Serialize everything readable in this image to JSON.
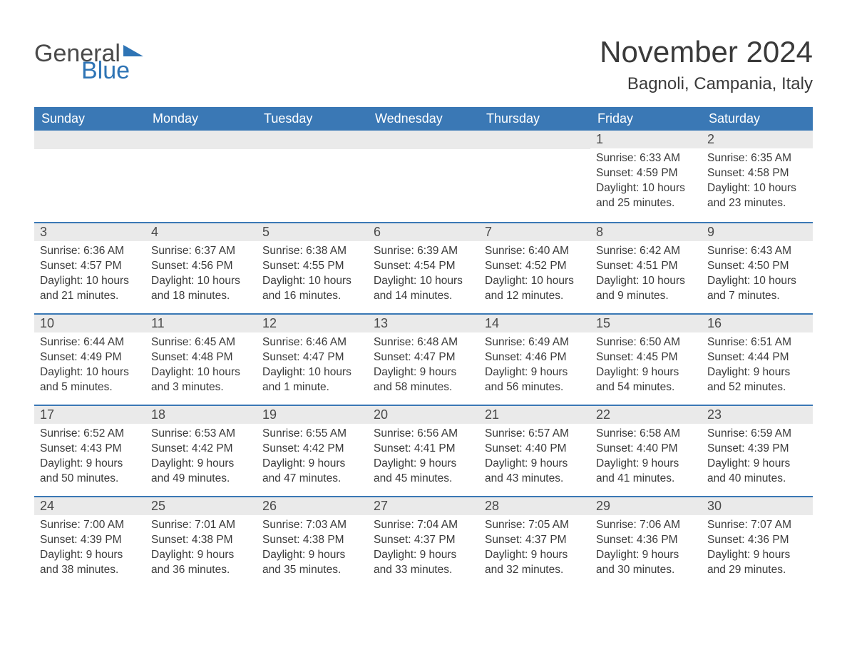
{
  "colors": {
    "header_bg": "#3a78b5",
    "header_text": "#ffffff",
    "daybar_bg": "#eaeaea",
    "daybar_border": "#3a78b5",
    "body_text": "#3a3a3a",
    "logo_gray": "#4a4a4a",
    "logo_blue": "#2e74b5",
    "page_bg": "#ffffff"
  },
  "fonts": {
    "family": "Segoe UI, Arial, sans-serif",
    "month_title_size": 42,
    "location_size": 24,
    "weekday_size": 18,
    "daynum_size": 18,
    "body_size": 15.5
  },
  "logo": {
    "general": "General",
    "blue": "Blue"
  },
  "title": "November 2024",
  "location": "Bagnoli, Campania, Italy",
  "weekdays": [
    "Sunday",
    "Monday",
    "Tuesday",
    "Wednesday",
    "Thursday",
    "Friday",
    "Saturday"
  ],
  "weeks": [
    [
      null,
      null,
      null,
      null,
      null,
      {
        "n": "1",
        "sunrise": "Sunrise: 6:33 AM",
        "sunset": "Sunset: 4:59 PM",
        "day1": "Daylight: 10 hours",
        "day2": "and 25 minutes."
      },
      {
        "n": "2",
        "sunrise": "Sunrise: 6:35 AM",
        "sunset": "Sunset: 4:58 PM",
        "day1": "Daylight: 10 hours",
        "day2": "and 23 minutes."
      }
    ],
    [
      {
        "n": "3",
        "sunrise": "Sunrise: 6:36 AM",
        "sunset": "Sunset: 4:57 PM",
        "day1": "Daylight: 10 hours",
        "day2": "and 21 minutes."
      },
      {
        "n": "4",
        "sunrise": "Sunrise: 6:37 AM",
        "sunset": "Sunset: 4:56 PM",
        "day1": "Daylight: 10 hours",
        "day2": "and 18 minutes."
      },
      {
        "n": "5",
        "sunrise": "Sunrise: 6:38 AM",
        "sunset": "Sunset: 4:55 PM",
        "day1": "Daylight: 10 hours",
        "day2": "and 16 minutes."
      },
      {
        "n": "6",
        "sunrise": "Sunrise: 6:39 AM",
        "sunset": "Sunset: 4:54 PM",
        "day1": "Daylight: 10 hours",
        "day2": "and 14 minutes."
      },
      {
        "n": "7",
        "sunrise": "Sunrise: 6:40 AM",
        "sunset": "Sunset: 4:52 PM",
        "day1": "Daylight: 10 hours",
        "day2": "and 12 minutes."
      },
      {
        "n": "8",
        "sunrise": "Sunrise: 6:42 AM",
        "sunset": "Sunset: 4:51 PM",
        "day1": "Daylight: 10 hours",
        "day2": "and 9 minutes."
      },
      {
        "n": "9",
        "sunrise": "Sunrise: 6:43 AM",
        "sunset": "Sunset: 4:50 PM",
        "day1": "Daylight: 10 hours",
        "day2": "and 7 minutes."
      }
    ],
    [
      {
        "n": "10",
        "sunrise": "Sunrise: 6:44 AM",
        "sunset": "Sunset: 4:49 PM",
        "day1": "Daylight: 10 hours",
        "day2": "and 5 minutes."
      },
      {
        "n": "11",
        "sunrise": "Sunrise: 6:45 AM",
        "sunset": "Sunset: 4:48 PM",
        "day1": "Daylight: 10 hours",
        "day2": "and 3 minutes."
      },
      {
        "n": "12",
        "sunrise": "Sunrise: 6:46 AM",
        "sunset": "Sunset: 4:47 PM",
        "day1": "Daylight: 10 hours",
        "day2": "and 1 minute."
      },
      {
        "n": "13",
        "sunrise": "Sunrise: 6:48 AM",
        "sunset": "Sunset: 4:47 PM",
        "day1": "Daylight: 9 hours",
        "day2": "and 58 minutes."
      },
      {
        "n": "14",
        "sunrise": "Sunrise: 6:49 AM",
        "sunset": "Sunset: 4:46 PM",
        "day1": "Daylight: 9 hours",
        "day2": "and 56 minutes."
      },
      {
        "n": "15",
        "sunrise": "Sunrise: 6:50 AM",
        "sunset": "Sunset: 4:45 PM",
        "day1": "Daylight: 9 hours",
        "day2": "and 54 minutes."
      },
      {
        "n": "16",
        "sunrise": "Sunrise: 6:51 AM",
        "sunset": "Sunset: 4:44 PM",
        "day1": "Daylight: 9 hours",
        "day2": "and 52 minutes."
      }
    ],
    [
      {
        "n": "17",
        "sunrise": "Sunrise: 6:52 AM",
        "sunset": "Sunset: 4:43 PM",
        "day1": "Daylight: 9 hours",
        "day2": "and 50 minutes."
      },
      {
        "n": "18",
        "sunrise": "Sunrise: 6:53 AM",
        "sunset": "Sunset: 4:42 PM",
        "day1": "Daylight: 9 hours",
        "day2": "and 49 minutes."
      },
      {
        "n": "19",
        "sunrise": "Sunrise: 6:55 AM",
        "sunset": "Sunset: 4:42 PM",
        "day1": "Daylight: 9 hours",
        "day2": "and 47 minutes."
      },
      {
        "n": "20",
        "sunrise": "Sunrise: 6:56 AM",
        "sunset": "Sunset: 4:41 PM",
        "day1": "Daylight: 9 hours",
        "day2": "and 45 minutes."
      },
      {
        "n": "21",
        "sunrise": "Sunrise: 6:57 AM",
        "sunset": "Sunset: 4:40 PM",
        "day1": "Daylight: 9 hours",
        "day2": "and 43 minutes."
      },
      {
        "n": "22",
        "sunrise": "Sunrise: 6:58 AM",
        "sunset": "Sunset: 4:40 PM",
        "day1": "Daylight: 9 hours",
        "day2": "and 41 minutes."
      },
      {
        "n": "23",
        "sunrise": "Sunrise: 6:59 AM",
        "sunset": "Sunset: 4:39 PM",
        "day1": "Daylight: 9 hours",
        "day2": "and 40 minutes."
      }
    ],
    [
      {
        "n": "24",
        "sunrise": "Sunrise: 7:00 AM",
        "sunset": "Sunset: 4:39 PM",
        "day1": "Daylight: 9 hours",
        "day2": "and 38 minutes."
      },
      {
        "n": "25",
        "sunrise": "Sunrise: 7:01 AM",
        "sunset": "Sunset: 4:38 PM",
        "day1": "Daylight: 9 hours",
        "day2": "and 36 minutes."
      },
      {
        "n": "26",
        "sunrise": "Sunrise: 7:03 AM",
        "sunset": "Sunset: 4:38 PM",
        "day1": "Daylight: 9 hours",
        "day2": "and 35 minutes."
      },
      {
        "n": "27",
        "sunrise": "Sunrise: 7:04 AM",
        "sunset": "Sunset: 4:37 PM",
        "day1": "Daylight: 9 hours",
        "day2": "and 33 minutes."
      },
      {
        "n": "28",
        "sunrise": "Sunrise: 7:05 AM",
        "sunset": "Sunset: 4:37 PM",
        "day1": "Daylight: 9 hours",
        "day2": "and 32 minutes."
      },
      {
        "n": "29",
        "sunrise": "Sunrise: 7:06 AM",
        "sunset": "Sunset: 4:36 PM",
        "day1": "Daylight: 9 hours",
        "day2": "and 30 minutes."
      },
      {
        "n": "30",
        "sunrise": "Sunrise: 7:07 AM",
        "sunset": "Sunset: 4:36 PM",
        "day1": "Daylight: 9 hours",
        "day2": "and 29 minutes."
      }
    ]
  ]
}
